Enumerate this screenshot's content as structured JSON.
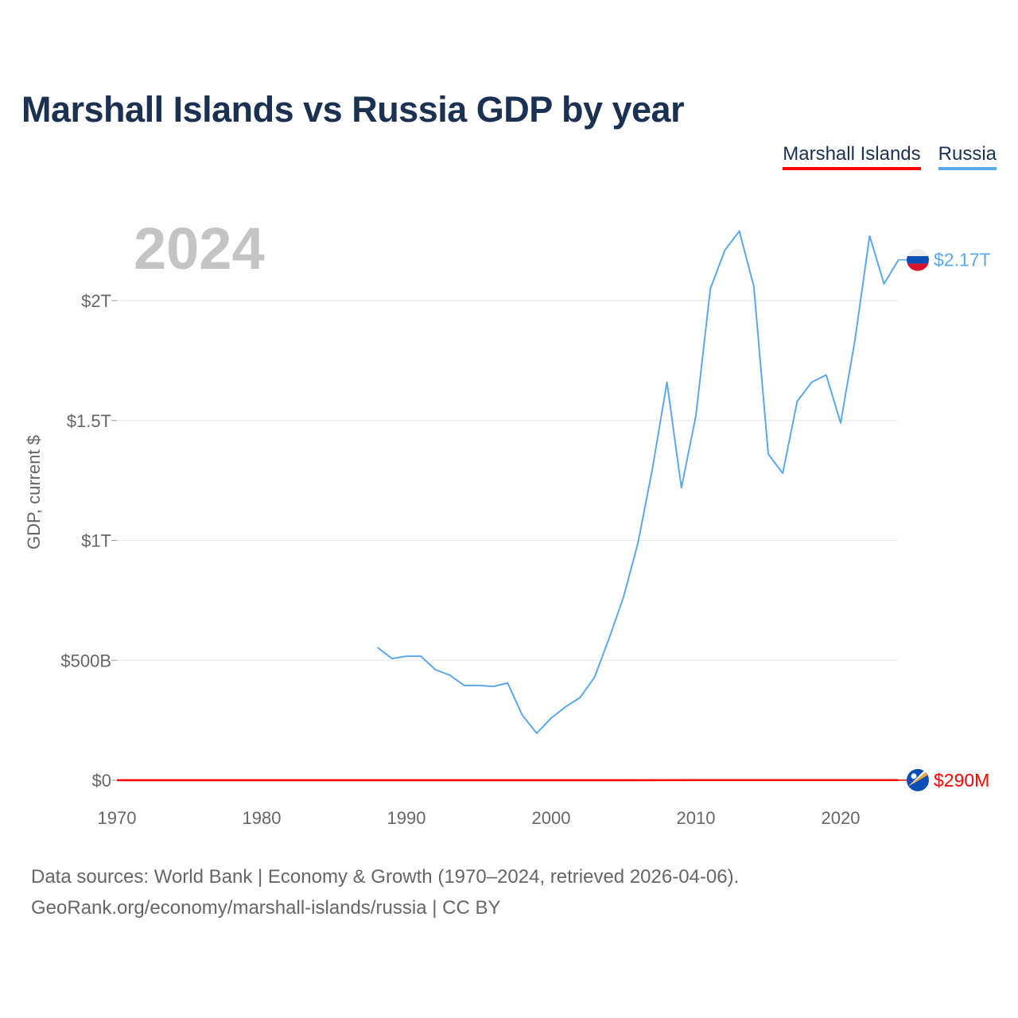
{
  "chart_data": {
    "type": "line",
    "title": "Marshall Islands vs Russia GDP by year",
    "ylabel": "GDP, current $",
    "xlabel": "",
    "xlim": [
      1970,
      2024
    ],
    "ylim": [
      0,
      2.3
    ],
    "y_unit": "trillions USD",
    "x_ticks": [
      1970,
      1980,
      1990,
      2000,
      2010,
      2020
    ],
    "y_ticks": [
      {
        "value": 0,
        "label": "$0"
      },
      {
        "value": 0.5,
        "label": "$500B"
      },
      {
        "value": 1,
        "label": "$1T"
      },
      {
        "value": 1.5,
        "label": "$1.5T"
      },
      {
        "value": 2,
        "label": "$2T"
      }
    ],
    "grid": true,
    "legend_position": "top-right",
    "year_label": "2024",
    "series": [
      {
        "name": "Marshall Islands",
        "color": "#ff0000",
        "end_label": "$290M",
        "flag": "marshall-islands-flag",
        "x": [
          1970,
          1981,
          1985,
          1990,
          1995,
          2000,
          2005,
          2010,
          2015,
          2020,
          2024
        ],
        "values": [
          0.0,
          5e-05,
          6e-05,
          9e-05,
          0.00012,
          0.00011,
          0.00014,
          0.00017,
          0.00018,
          0.00024,
          0.00029
        ]
      },
      {
        "name": "Russia",
        "color": "#5ba8ec",
        "end_label": "$2.17T",
        "flag": "russia-flag",
        "x": [
          1988,
          1989,
          1990,
          1991,
          1992,
          1993,
          1994,
          1995,
          1996,
          1997,
          1998,
          1999,
          2000,
          2001,
          2002,
          2003,
          2004,
          2005,
          2006,
          2007,
          2008,
          2009,
          2010,
          2011,
          2012,
          2013,
          2014,
          2015,
          2016,
          2017,
          2018,
          2019,
          2020,
          2021,
          2022,
          2023,
          2024
        ],
        "values": [
          0.554,
          0.507,
          0.517,
          0.517,
          0.461,
          0.438,
          0.395,
          0.395,
          0.391,
          0.405,
          0.272,
          0.196,
          0.259,
          0.306,
          0.345,
          0.43,
          0.591,
          0.764,
          0.99,
          1.3,
          1.66,
          1.22,
          1.52,
          2.05,
          2.21,
          2.29,
          2.06,
          1.36,
          1.28,
          1.58,
          1.66,
          1.69,
          1.49,
          1.84,
          2.27,
          2.07,
          2.17
        ]
      }
    ]
  },
  "source": {
    "line1": "Data sources: World Bank | Economy & Growth (1970–2024, retrieved 2026-04-06).",
    "line2": "GeoRank.org/economy/marshall-islands/russia | CC BY"
  }
}
